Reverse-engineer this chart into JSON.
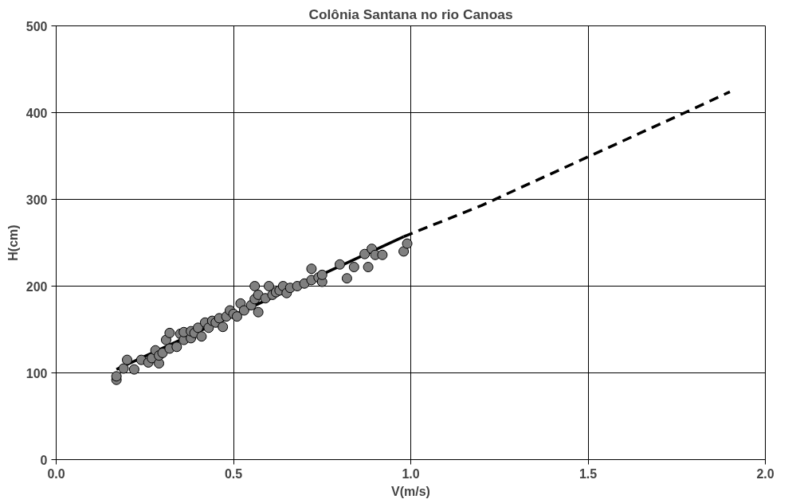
{
  "chart_data": {
    "type": "scatter",
    "title": "Colônia Santana no rio Canoas",
    "xlabel": "V(m/s)",
    "ylabel": "H(cm)",
    "xlim": [
      0,
      2
    ],
    "ylim": [
      0,
      500
    ],
    "xticks": [
      {
        "value": 0,
        "label": "0.0"
      },
      0.5,
      {
        "value": 1,
        "label": "1.0"
      },
      1.5,
      {
        "value": 2,
        "label": "2.0"
      }
    ],
    "yticks": [
      0,
      100,
      200,
      300,
      400,
      500
    ],
    "grid": true,
    "series": [
      {
        "color": "#808080",
        "marker": "circle",
        "x": [
          0.17,
          0.17,
          0.19,
          0.2,
          0.22,
          0.24,
          0.26,
          0.27,
          0.28,
          0.29,
          0.29,
          0.3,
          0.31,
          0.32,
          0.32,
          0.34,
          0.35,
          0.36,
          0.36,
          0.38,
          0.38,
          0.39,
          0.4,
          0.41,
          0.42,
          0.43,
          0.44,
          0.45,
          0.46,
          0.47,
          0.48,
          0.49,
          0.5,
          0.51,
          0.52,
          0.53,
          0.55,
          0.56,
          0.56,
          0.57,
          0.57,
          0.59,
          0.6,
          0.61,
          0.62,
          0.63,
          0.64,
          0.65,
          0.66,
          0.68,
          0.7,
          0.72,
          0.72,
          0.74,
          0.75,
          0.75,
          0.8,
          0.82,
          0.84,
          0.87,
          0.88,
          0.89,
          0.9,
          0.92,
          0.98,
          0.99
        ],
        "values": [
          92,
          96,
          105,
          115,
          104,
          115,
          112,
          117,
          126,
          111,
          120,
          123,
          138,
          146,
          128,
          130,
          145,
          138,
          147,
          140,
          148,
          146,
          152,
          142,
          158,
          152,
          160,
          158,
          163,
          153,
          165,
          172,
          168,
          165,
          180,
          172,
          178,
          185,
          200,
          170,
          190,
          186,
          200,
          190,
          193,
          195,
          200,
          192,
          198,
          200,
          203,
          207,
          220,
          210,
          205,
          213,
          225,
          209,
          222,
          237,
          222,
          243,
          236,
          236,
          240,
          249
        ]
      },
      {
        "type": "line",
        "color": "#000000",
        "line_style": "solid",
        "x": [
          0.17,
          0.98
        ],
        "values": [
          104,
          257
        ]
      },
      {
        "type": "line",
        "color": "#000000",
        "line_style": "dashed",
        "x": [
          0.98,
          1.2,
          1.5,
          1.8,
          1.9
        ],
        "values": [
          257,
          293,
          349,
          405,
          424
        ]
      }
    ]
  }
}
